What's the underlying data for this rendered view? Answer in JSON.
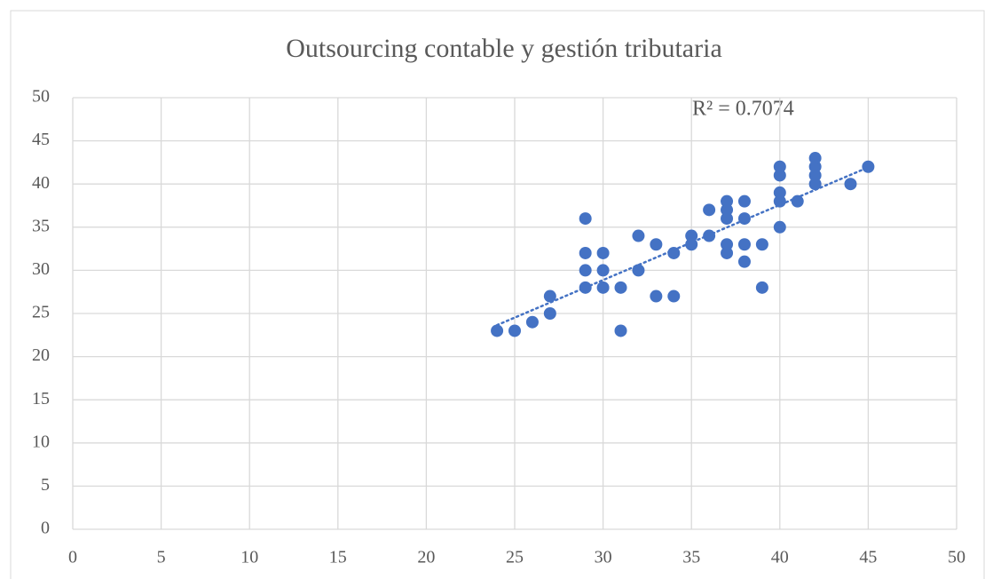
{
  "chart_data": {
    "type": "scatter",
    "title": "Outsourcing contable y gestión tributaria",
    "annotation": "R² = 0.7074",
    "x": [
      24,
      25,
      26,
      27,
      27,
      29,
      29,
      29,
      29,
      30,
      30,
      30,
      31,
      31,
      32,
      32,
      33,
      33,
      34,
      34,
      35,
      35,
      36,
      36,
      37,
      37,
      37,
      37,
      37,
      38,
      38,
      38,
      38,
      39,
      39,
      40,
      40,
      40,
      40,
      40,
      41,
      42,
      42,
      42,
      42,
      44,
      45
    ],
    "y": [
      23,
      23,
      24,
      25,
      27,
      28,
      30,
      32,
      36,
      28,
      30,
      32,
      28,
      23,
      30,
      34,
      33,
      27,
      32,
      27,
      33,
      34,
      34,
      37,
      32,
      33,
      36,
      37,
      38,
      31,
      33,
      36,
      38,
      33,
      28,
      35,
      38,
      39,
      41,
      42,
      38,
      40,
      41,
      42,
      43,
      40,
      42
    ],
    "color": "#4472c4",
    "trendline": true,
    "trendline_color": "#4472c4",
    "xlim": [
      0,
      50
    ],
    "xticks": [
      0,
      5,
      10,
      15,
      20,
      25,
      30,
      35,
      40,
      45,
      50
    ],
    "ylim": [
      0,
      50
    ],
    "yticks": [
      0,
      5,
      10,
      15,
      20,
      25,
      30,
      35,
      40,
      45,
      50
    ],
    "grid": true
  }
}
